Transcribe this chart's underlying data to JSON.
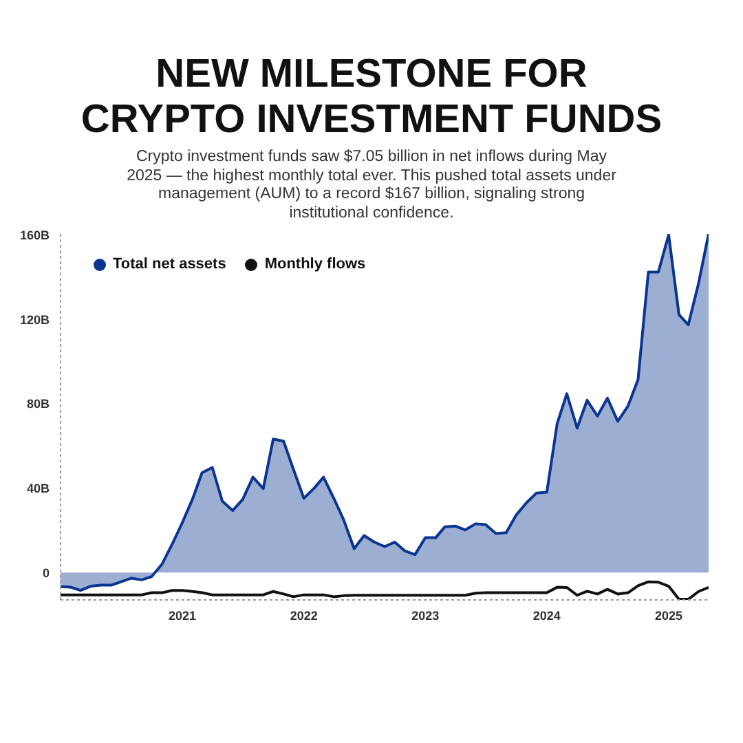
{
  "chart_data": {
    "type": "area",
    "title": "NEW MILESTONE FOR\nCRYPTO INVESTMENT FUNDS",
    "subtitle": "Crypto investment funds saw $7.05 billion in net inflows during May 2025 — the highest monthly total ever. This pushed total assets under management (AUM) to a record $167 billion, signaling strong institutional confidence.",
    "x": [
      "2020-01",
      "2020-02",
      "2020-03",
      "2020-04",
      "2020-05",
      "2020-06",
      "2020-07",
      "2020-08",
      "2020-09",
      "2020-10",
      "2020-11",
      "2020-12",
      "2021-01",
      "2021-02",
      "2021-03",
      "2021-04",
      "2021-05",
      "2021-06",
      "2021-07",
      "2021-08",
      "2021-09",
      "2021-10",
      "2021-11",
      "2021-12",
      "2022-01",
      "2022-02",
      "2022-03",
      "2022-04",
      "2022-05",
      "2022-06",
      "2022-07",
      "2022-08",
      "2022-09",
      "2022-10",
      "2022-11",
      "2022-12",
      "2023-01",
      "2023-02",
      "2023-03",
      "2023-04",
      "2023-05",
      "2023-06",
      "2023-07",
      "2023-08",
      "2023-09",
      "2023-10",
      "2023-11",
      "2023-12",
      "2024-01",
      "2024-02",
      "2024-03",
      "2024-04",
      "2024-05",
      "2024-06",
      "2024-07",
      "2024-08",
      "2024-09",
      "2024-10",
      "2024-11",
      "2024-12",
      "2025-01",
      "2025-02",
      "2025-03",
      "2025-04",
      "2025-05"
    ],
    "series": [
      {
        "name": "Total net assets",
        "color": "#0a3590",
        "values": [
          -6.7,
          -7,
          -8.5,
          -6.5,
          -6,
          -6,
          -4.4,
          -2.7,
          -3.5,
          -1.9,
          4,
          13.3,
          23.7,
          35,
          47.3,
          49.8,
          33.8,
          29.4,
          34.6,
          45.2,
          39.8,
          63.3,
          62.3,
          48.8,
          35.2,
          40,
          45.2,
          35.2,
          24.8,
          11.3,
          17.5,
          14.4,
          12.3,
          14.4,
          10.2,
          8.5,
          16.5,
          16.5,
          21.7,
          22,
          20.2,
          23.1,
          22.7,
          18.5,
          18.9,
          27.3,
          33.1,
          37.7,
          38.1,
          70.6,
          84.8,
          68.5,
          81.7,
          74.2,
          82.7,
          71.7,
          79,
          91.5,
          142.5,
          142.5,
          160.2,
          122.3,
          117.5,
          137.3,
          160.6
        ]
      },
      {
        "name": "Monthly flows",
        "type": "line",
        "color": "#111111",
        "values": [
          -10.6,
          -10.6,
          -10.6,
          -10.6,
          -10.6,
          -10.6,
          -10.6,
          -10.6,
          -10.6,
          -9.6,
          -9.6,
          -8.5,
          -8.5,
          -9,
          -9.6,
          -10.6,
          -10.6,
          -10.6,
          -10.6,
          -10.6,
          -10.6,
          -9,
          -10.2,
          -11.5,
          -10.6,
          -10.6,
          -10.6,
          -11.5,
          -11,
          -10.8,
          -10.8,
          -10.8,
          -10.8,
          -10.8,
          -10.8,
          -10.8,
          -10.8,
          -10.8,
          -10.8,
          -10.8,
          -10.8,
          -9.8,
          -9.6,
          -9.6,
          -9.6,
          -9.6,
          -9.6,
          -9.6,
          -9.6,
          -7,
          -7.1,
          -10.8,
          -8.9,
          -10.2,
          -8,
          -10.2,
          -9.6,
          -6.3,
          -4.4,
          -4.6,
          -6.5,
          -12.7,
          -12.7,
          -9,
          -7.1
        ]
      }
    ],
    "xlim": [
      "2020-01",
      "2025-05"
    ],
    "xticks": [
      {
        "value": "2021-01",
        "label": "2021"
      },
      {
        "value": "2022-01",
        "label": "2022"
      },
      {
        "value": "2023-01",
        "label": "2023"
      },
      {
        "value": "2024-01",
        "label": "2024"
      },
      {
        "value": "2025-01",
        "label": "2025"
      }
    ],
    "ylim": [
      -13,
      160.6
    ],
    "yticks": [
      0,
      {
        "value": 40,
        "label": "40B"
      },
      {
        "value": 80,
        "label": "80B"
      },
      {
        "value": 120,
        "label": "120B"
      },
      {
        "value": 160,
        "label": "160B"
      }
    ],
    "grid": false,
    "legend": "top left",
    "marker": "none",
    "line_style": "solid"
  }
}
